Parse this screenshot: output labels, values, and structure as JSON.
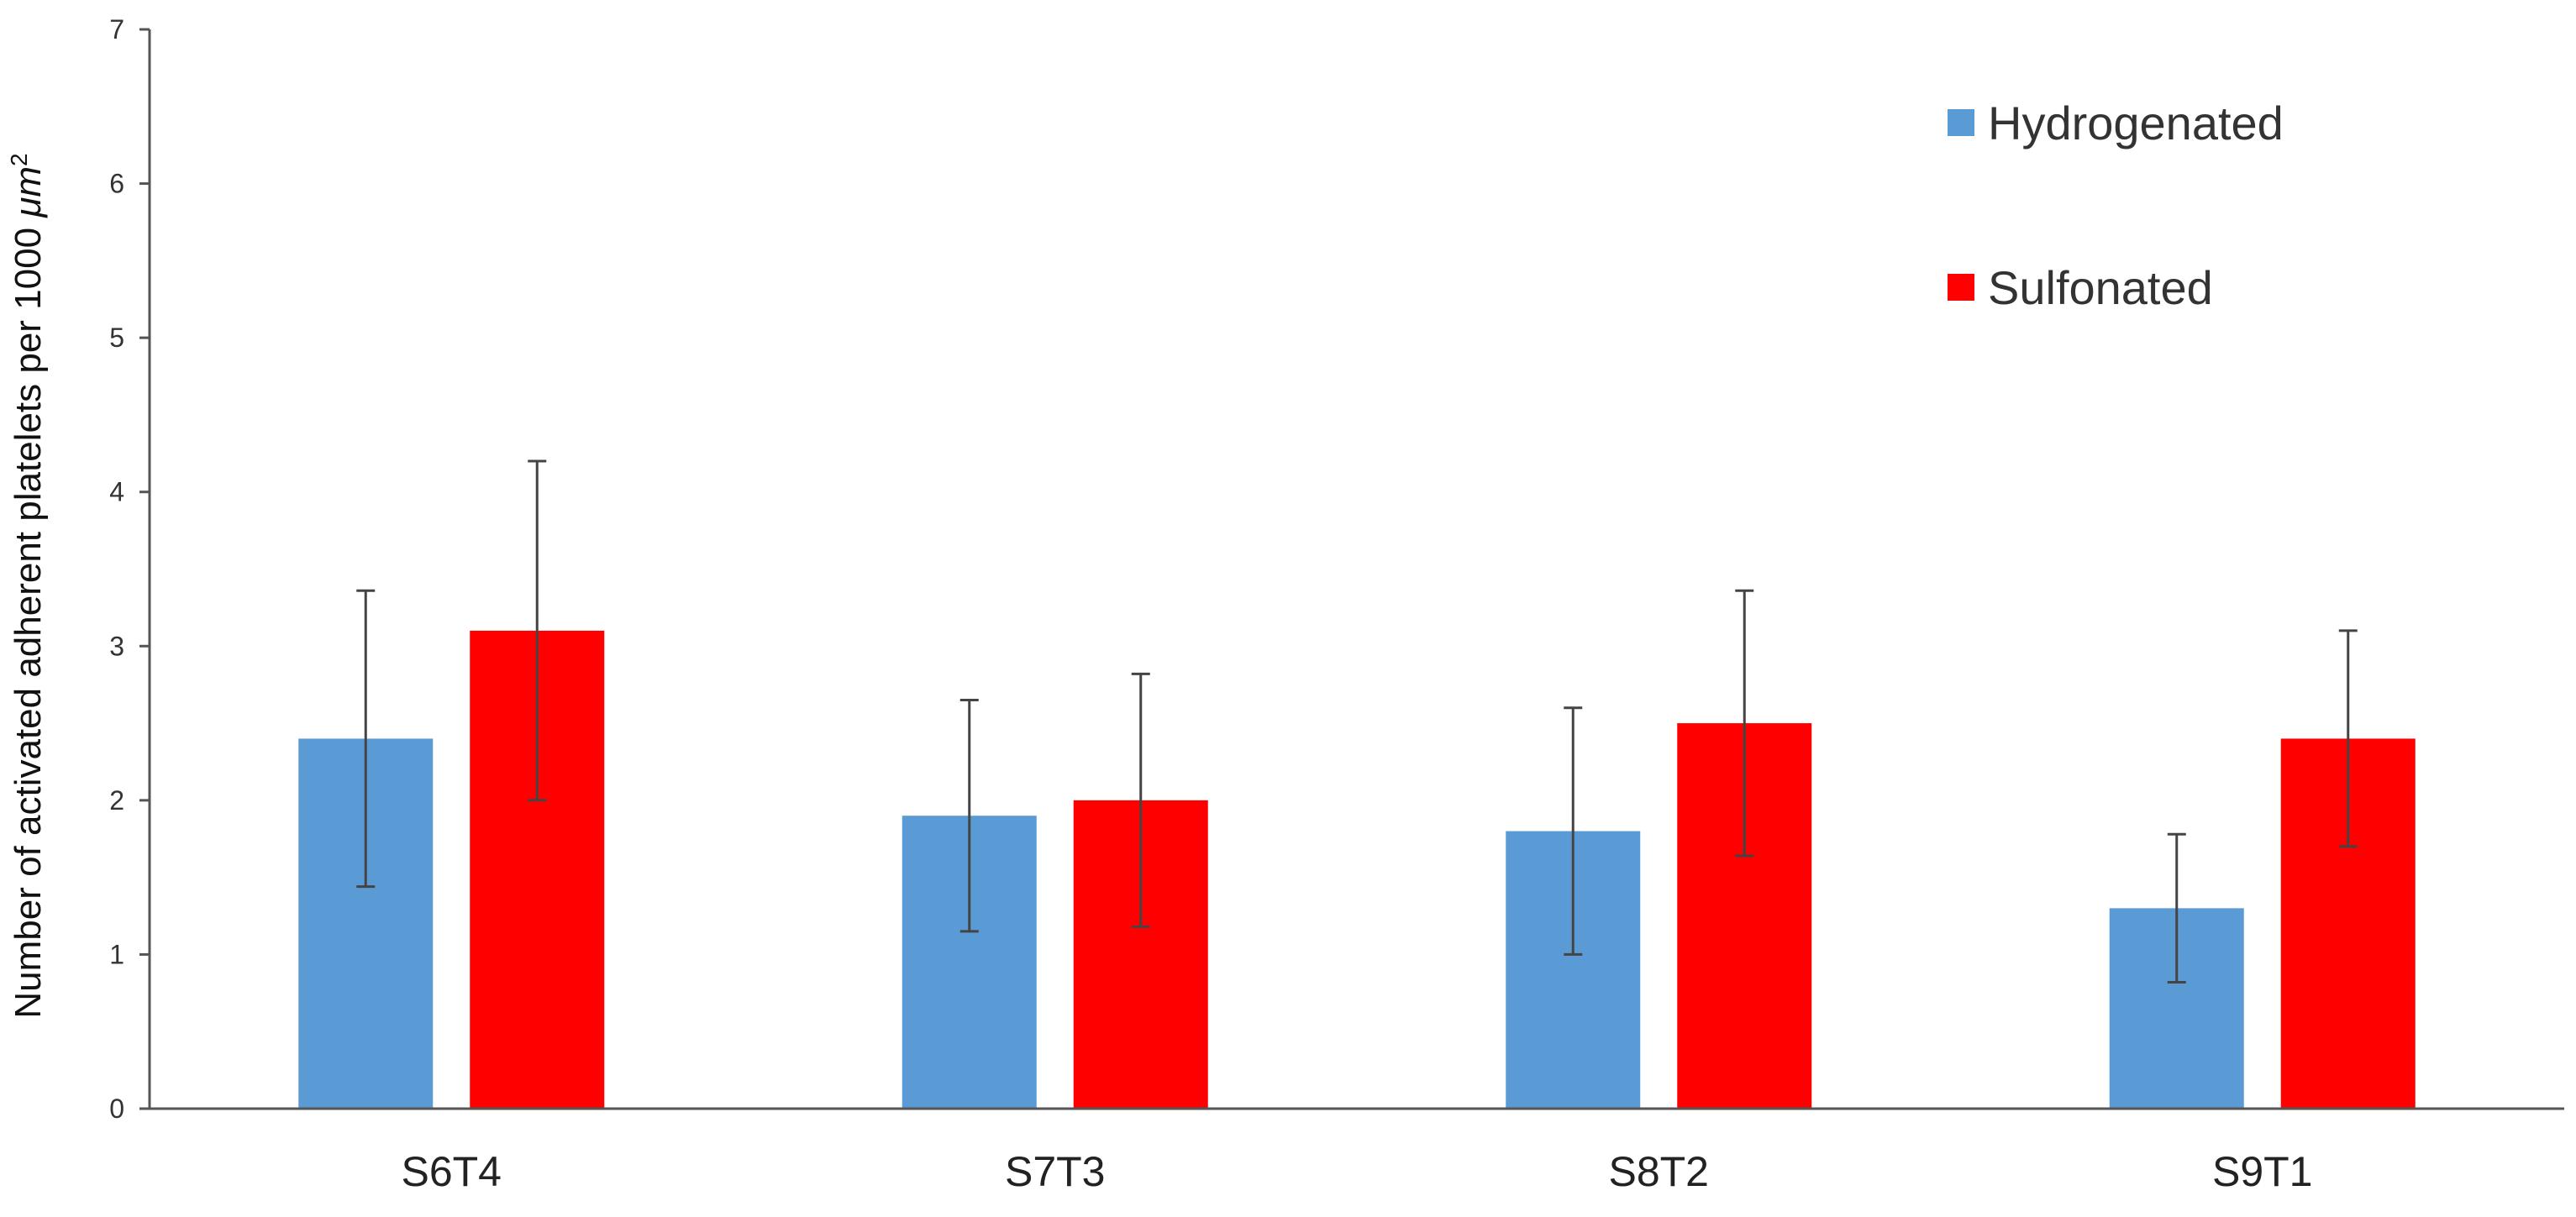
{
  "chart_data": {
    "type": "bar",
    "title": "",
    "xlabel": "",
    "ylabel": "Number of activated adherent platelets per 1000 μm²",
    "ylabel_main": "Number of activated adherent platelets  per 1000 ",
    "ylabel_unit": "μm",
    "ylabel_exp": "2",
    "categories": [
      "S6T4",
      "S7T3",
      "S8T2",
      "S9T1"
    ],
    "ylim": [
      0,
      7
    ],
    "yticks": [
      0,
      1,
      2,
      3,
      4,
      5,
      6,
      7
    ],
    "grid": false,
    "legend_position": "top-right",
    "series": [
      {
        "name": "Hydrogenated",
        "color": "#5b9bd5",
        "values": [
          2.4,
          1.9,
          1.8,
          1.3
        ],
        "error": [
          0.96,
          0.75,
          0.8,
          0.48
        ]
      },
      {
        "name": "Sulfonated",
        "color": "#ff0000",
        "values": [
          3.1,
          2.0,
          2.5,
          2.4
        ],
        "error": [
          1.1,
          0.82,
          0.86,
          0.7
        ]
      }
    ]
  }
}
